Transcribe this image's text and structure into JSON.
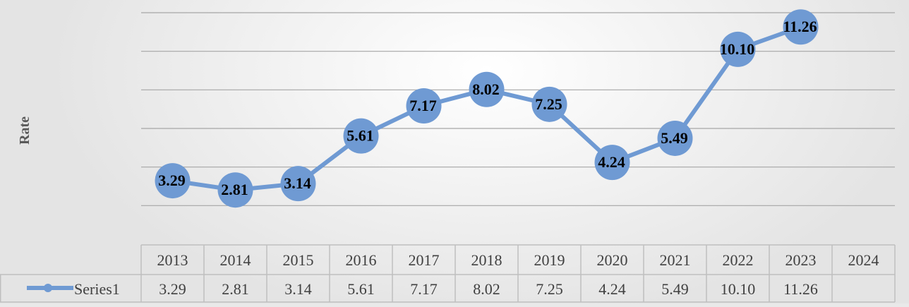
{
  "chart_data": {
    "type": "line",
    "ylabel": "Rate",
    "categories": [
      "2013",
      "2014",
      "2015",
      "2016",
      "2017",
      "2018",
      "2019",
      "2020",
      "2021",
      "2022",
      "2023",
      "2024"
    ],
    "series": [
      {
        "name": "Series1",
        "values": [
          3.29,
          2.81,
          3.14,
          5.61,
          7.17,
          8.02,
          7.25,
          4.24,
          5.49,
          10.1,
          11.26,
          null
        ],
        "labels": [
          "3.29",
          "2.81",
          "3.14",
          "5.61",
          "7.17",
          "8.02",
          "7.25",
          "4.24",
          "5.49",
          "10.10",
          "11.26",
          ""
        ]
      }
    ],
    "ylim": [
      0,
      12
    ],
    "gridlines": true,
    "data_table": true,
    "legend": "in data table",
    "colors": {
      "series": "#6f9ad3",
      "grid": "#a6a6a6",
      "table_border": "#bfbfbf"
    }
  }
}
